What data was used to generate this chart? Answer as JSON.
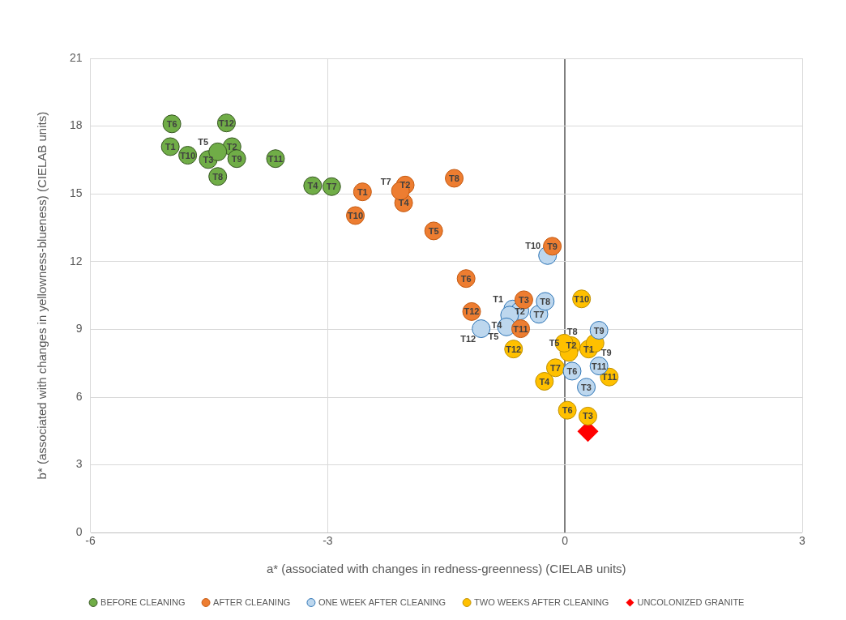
{
  "chart_data": {
    "type": "scatter",
    "xlabel": "a* (associated with changes in redness-greenness) (CIELAB units)",
    "ylabel": "b* (associated with changes in yellowness-blueness) (CIELAB units)",
    "xlim": [
      -6,
      3
    ],
    "xticks": [
      -6,
      -3,
      0,
      3
    ],
    "ylim": [
      0,
      21
    ],
    "yticks": [
      0,
      3,
      6,
      9,
      12,
      15,
      18,
      21
    ],
    "grid": true,
    "legend": "bottom",
    "series": [
      {
        "name": "BEFORE CLEANING",
        "color": "#70ad47",
        "marker": "circle",
        "x": [
          -4.99,
          -4.21,
          -4.51,
          -3.19,
          -4.39,
          -4.97,
          -2.95,
          -4.39,
          -4.15,
          -4.77,
          -3.66,
          -4.28
        ],
        "values": [
          17.09,
          17.09,
          16.52,
          15.36,
          16.86,
          18.1,
          15.32,
          15.77,
          16.56,
          16.71,
          16.56,
          18.14
        ],
        "value_labels": [
          "T1",
          "T2",
          "T3",
          "T4",
          "T5",
          "T6",
          "T7",
          "T8",
          "T9",
          "T10",
          "T11",
          "T12"
        ]
      },
      {
        "name": "AFTER CLEANING",
        "color": "#ed7d31",
        "marker": "circle",
        "x": [
          -2.56,
          -2.02,
          -0.52,
          -2.04,
          -1.66,
          -1.25,
          -2.08,
          -1.4,
          -0.16,
          -2.65,
          -0.56,
          -1.18
        ],
        "values": [
          15.09,
          15.39,
          10.31,
          14.6,
          13.36,
          11.25,
          15.13,
          15.69,
          12.68,
          14.04,
          9.03,
          9.79
        ],
        "value_labels": [
          "T1",
          "T2",
          "T3",
          "T4",
          "T5",
          "T6",
          "T7",
          "T8",
          "T9",
          "T10",
          "T11",
          "T12"
        ]
      },
      {
        "name": "ONE WEEK AFTER CLEANING",
        "color": "#bdd7ee",
        "marker": "circle",
        "x": [
          -0.66,
          -0.57,
          0.27,
          -0.7,
          -0.74,
          0.09,
          -0.33,
          -0.25,
          0.43,
          -0.22,
          0.43,
          -1.06
        ],
        "values": [
          9.9,
          9.82,
          6.44,
          9.63,
          9.11,
          7.15,
          9.67,
          10.24,
          8.96,
          12.27,
          7.38,
          9.03
        ],
        "value_labels": [
          "T1",
          "T2",
          "T3",
          "T4",
          "T5",
          "T6",
          "T7",
          "T8",
          "T9",
          "T10",
          "T11",
          "T12"
        ]
      },
      {
        "name": "TWO WEEKS AFTER CLEANING",
        "color": "#ffc000",
        "marker": "circle",
        "x": [
          0.3,
          0.08,
          0.29,
          -0.26,
          0.05,
          0.03,
          -0.12,
          -0.01,
          0.38,
          0.21,
          0.56,
          -0.65
        ],
        "values": [
          8.13,
          8.28,
          5.16,
          6.7,
          7.98,
          5.42,
          7.3,
          8.39,
          8.39,
          10.35,
          6.89,
          8.13
        ],
        "value_labels": [
          "T1",
          "T2",
          "T3",
          "T4",
          "T5",
          "T6",
          "T7",
          "T8",
          "T9",
          "T10",
          "T11",
          "T12"
        ]
      },
      {
        "name": "UNCOLONIZED GRANITE",
        "color": "#ff0000",
        "marker": "diamond",
        "x": [
          0.29
        ],
        "values": [
          4.48
        ]
      }
    ]
  }
}
